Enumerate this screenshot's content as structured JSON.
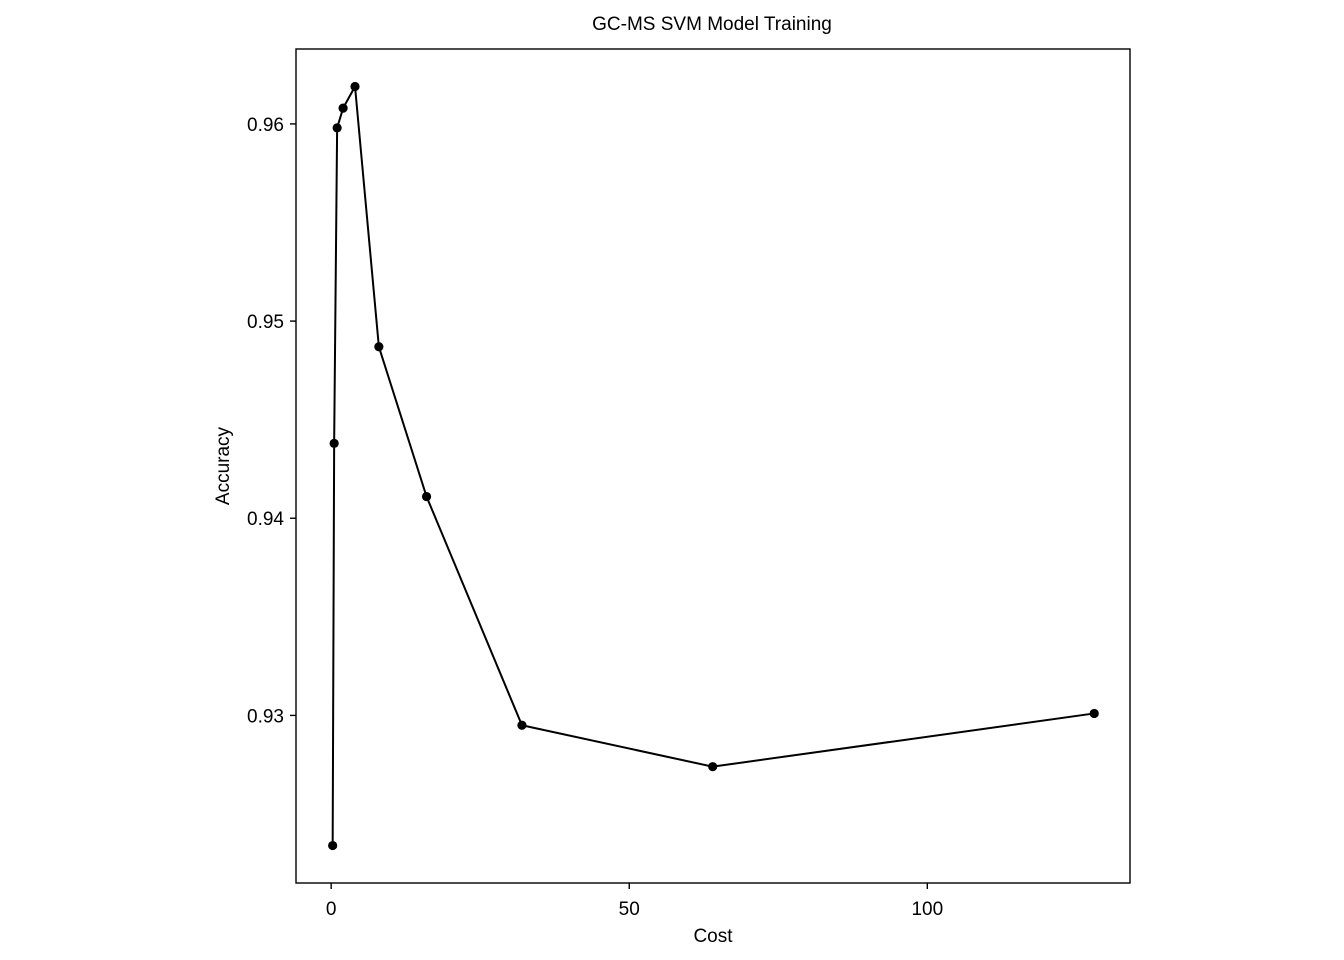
{
  "chart_data": {
    "type": "line",
    "title": "GC-MS SVM Model Training",
    "xlabel": "Cost",
    "ylabel": "Accuracy",
    "xlim": [
      -5.9,
      134.0
    ],
    "ylim": [
      0.9215,
      0.9638
    ],
    "xticks": [
      0,
      50,
      100
    ],
    "xtick_labels": [
      "0",
      "50",
      "100"
    ],
    "yticks": [
      0.93,
      0.94,
      0.95,
      0.96
    ],
    "ytick_labels": [
      "0.93",
      "0.94",
      "0.95",
      "0.96"
    ],
    "grid": false,
    "legend": "none",
    "series": [
      {
        "x": [
          0.25,
          0.5,
          1,
          2,
          4,
          8,
          16,
          32,
          64,
          128
        ],
        "y": [
          0.9234,
          0.9438,
          0.9598,
          0.9608,
          0.9619,
          0.9487,
          0.9411,
          0.9295,
          0.9274,
          0.9301
        ]
      }
    ],
    "colors": {
      "line": "#000000",
      "point": "#000000",
      "panel_border": "#000000",
      "background": "#ffffff"
    }
  }
}
